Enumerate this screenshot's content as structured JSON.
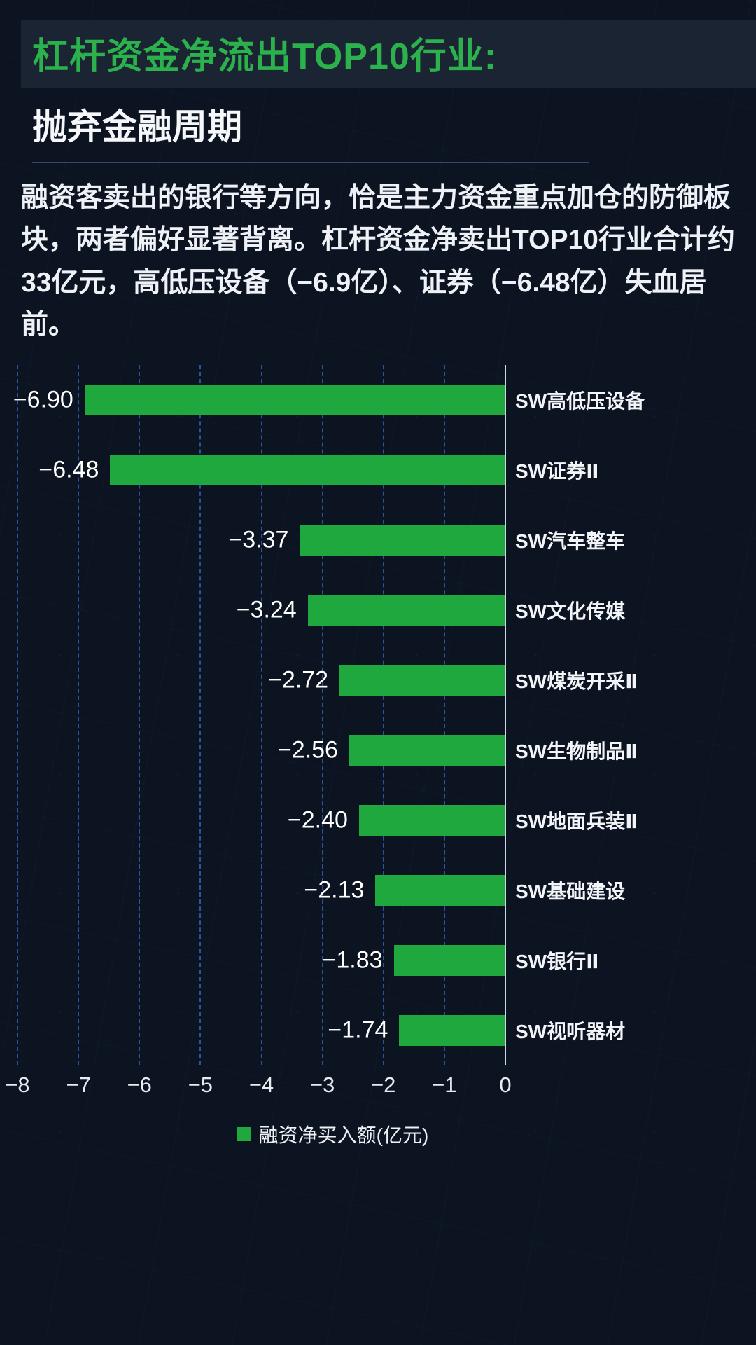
{
  "header": {
    "title": "杠杆资金净流出TOP10行业:",
    "subtitle": "抛弃金融周期"
  },
  "description": "融资客卖出的银行等方向，恰是主力资金重点加仓的防御板块，两者偏好显著背离。杠杆资金净卖出TOP10行业合计约33亿元，高低压设备（−6.9亿）、证券（−6.48亿）失血居前。",
  "colors": {
    "accent_green": "#2bb24c",
    "bar_green": "#1fa83d",
    "background": "#0c1422",
    "grid_blue": "#3a68c8"
  },
  "chart_data": {
    "type": "bar",
    "orientation": "horizontal",
    "title": "",
    "xlabel": "",
    "ylabel": "",
    "xlim": [
      -8,
      0
    ],
    "grid": true,
    "legend_position": "bottom",
    "legend": "融资净买入额(亿元)",
    "categories": [
      "SW高低压设备",
      "SW证券Ⅱ",
      "SW汽车整车",
      "SW文化传媒",
      "SW煤炭开采Ⅱ",
      "SW生物制品Ⅱ",
      "SW地面兵装Ⅱ",
      "SW基础建设",
      "SW银行Ⅱ",
      "SW视听器材"
    ],
    "values": [
      -6.9,
      -6.48,
      -3.37,
      -3.24,
      -2.72,
      -2.56,
      -2.4,
      -2.13,
      -1.83,
      -1.74
    ],
    "value_labels": [
      "−6.90",
      "−6.48",
      "−3.37",
      "−3.24",
      "−2.72",
      "−2.56",
      "−2.40",
      "−2.13",
      "−1.83",
      "−1.74"
    ],
    "x_ticks": [
      "−8",
      "−7",
      "−6",
      "−5",
      "−4",
      "−3",
      "−2",
      "−1",
      "0"
    ]
  }
}
